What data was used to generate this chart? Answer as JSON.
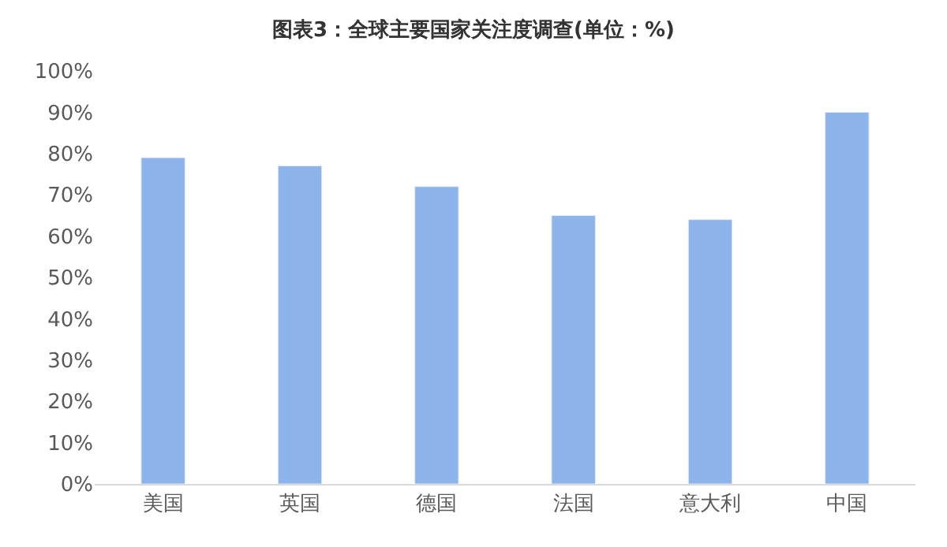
{
  "chart_data": {
    "type": "bar",
    "title": "图表3：全球主要国家关注度调查(单位：%)",
    "categories": [
      "美国",
      "英国",
      "德国",
      "法国",
      "意大利",
      "中国"
    ],
    "values": [
      79,
      77,
      72,
      65,
      64,
      90
    ],
    "color": "#8db4ea",
    "ylim": [
      0,
      100
    ],
    "yticks": [
      {
        "value": 0,
        "label": "0%"
      },
      {
        "value": 10,
        "label": "10%"
      },
      {
        "value": 20,
        "label": "20%"
      },
      {
        "value": 30,
        "label": "30%"
      },
      {
        "value": 40,
        "label": "40%"
      },
      {
        "value": 50,
        "label": "50%"
      },
      {
        "value": 60,
        "label": "60%"
      },
      {
        "value": 70,
        "label": "70%"
      },
      {
        "value": 80,
        "label": "80%"
      },
      {
        "value": 90,
        "label": "90%"
      },
      {
        "value": 100,
        "label": "100%"
      }
    ],
    "grid": false
  }
}
